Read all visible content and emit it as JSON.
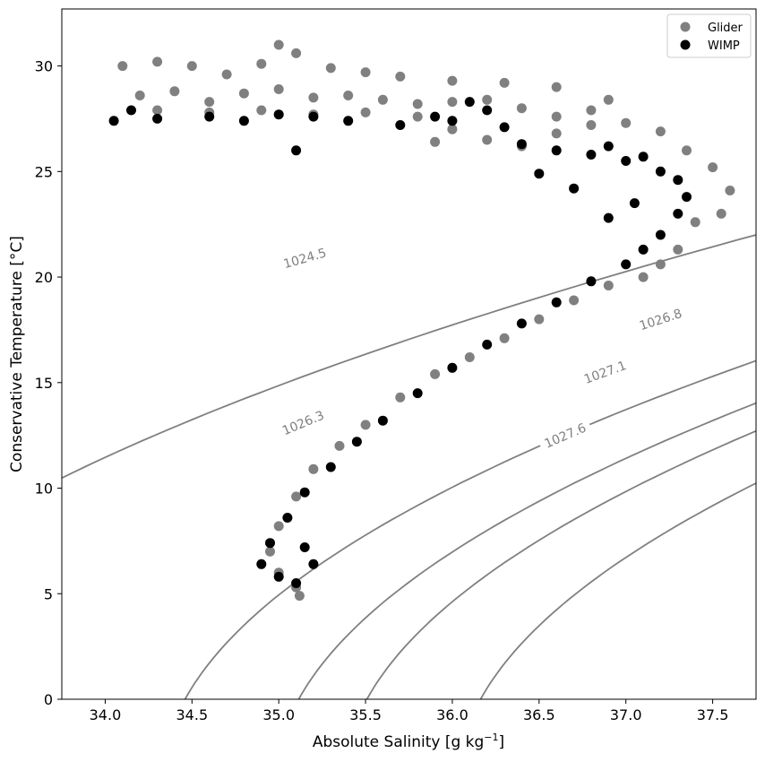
{
  "chart_data": {
    "type": "scatter",
    "xlabel": "Absolute Salinity [g kg",
    "xlabel_sup": "−1",
    "xlabel_end": "]",
    "ylabel": "Conservative Temperature [°C]",
    "xlim": [
      33.75,
      37.75
    ],
    "ylim": [
      0,
      32.7
    ],
    "x_ticks": [
      34.0,
      34.5,
      35.0,
      35.5,
      36.0,
      36.5,
      37.0,
      37.5
    ],
    "x_tick_labels": [
      "34.0",
      "34.5",
      "35.0",
      "35.5",
      "36.0",
      "36.5",
      "37.0",
      "37.5"
    ],
    "y_ticks": [
      0,
      5,
      10,
      15,
      20,
      25,
      30
    ],
    "y_tick_labels": [
      "0",
      "5",
      "10",
      "15",
      "20",
      "25",
      "30"
    ],
    "grid": false,
    "legend": {
      "position": "top-right",
      "entries": [
        "Glider",
        "WIMP"
      ]
    },
    "series": [
      {
        "name": "Glider",
        "color": "#808080",
        "points": [
          [
            34.1,
            30.0
          ],
          [
            34.3,
            30.2
          ],
          [
            34.5,
            30.0
          ],
          [
            34.7,
            29.6
          ],
          [
            34.9,
            30.1
          ],
          [
            35.0,
            31.0
          ],
          [
            35.1,
            30.6
          ],
          [
            35.3,
            29.9
          ],
          [
            35.5,
            29.7
          ],
          [
            35.7,
            29.5
          ],
          [
            36.0,
            29.3
          ],
          [
            36.3,
            29.2
          ],
          [
            36.6,
            29.0
          ],
          [
            36.9,
            28.4
          ],
          [
            34.2,
            28.6
          ],
          [
            34.4,
            28.8
          ],
          [
            34.6,
            28.3
          ],
          [
            34.8,
            28.7
          ],
          [
            35.0,
            28.9
          ],
          [
            35.2,
            28.5
          ],
          [
            35.4,
            28.6
          ],
          [
            35.6,
            28.4
          ],
          [
            35.8,
            28.2
          ],
          [
            36.0,
            28.3
          ],
          [
            36.2,
            28.4
          ],
          [
            36.4,
            28.0
          ],
          [
            36.6,
            27.6
          ],
          [
            36.8,
            27.9
          ],
          [
            34.3,
            27.9
          ],
          [
            34.6,
            27.8
          ],
          [
            34.9,
            27.9
          ],
          [
            35.2,
            27.7
          ],
          [
            35.5,
            27.8
          ],
          [
            35.8,
            27.6
          ],
          [
            36.0,
            27.0
          ],
          [
            36.2,
            26.5
          ],
          [
            36.4,
            26.2
          ],
          [
            35.9,
            26.4
          ],
          [
            36.6,
            26.8
          ],
          [
            36.8,
            27.2
          ],
          [
            37.0,
            27.3
          ],
          [
            37.2,
            26.9
          ],
          [
            37.35,
            26.0
          ],
          [
            37.5,
            25.2
          ],
          [
            37.6,
            24.1
          ],
          [
            37.55,
            23.0
          ],
          [
            37.4,
            22.6
          ],
          [
            37.3,
            21.3
          ],
          [
            37.2,
            20.6
          ],
          [
            37.1,
            20.0
          ],
          [
            36.9,
            19.6
          ],
          [
            36.7,
            18.9
          ],
          [
            36.5,
            18.0
          ],
          [
            36.3,
            17.1
          ],
          [
            36.1,
            16.2
          ],
          [
            35.9,
            15.4
          ],
          [
            35.7,
            14.3
          ],
          [
            35.5,
            13.0
          ],
          [
            35.35,
            12.0
          ],
          [
            35.2,
            10.9
          ],
          [
            35.1,
            9.6
          ],
          [
            35.0,
            8.2
          ],
          [
            34.95,
            7.0
          ],
          [
            35.0,
            6.0
          ],
          [
            35.1,
            5.3
          ],
          [
            35.12,
            4.9
          ]
        ]
      },
      {
        "name": "WIMP",
        "color": "#000000",
        "points": [
          [
            34.05,
            27.4
          ],
          [
            34.15,
            27.9
          ],
          [
            34.3,
            27.5
          ],
          [
            34.6,
            27.6
          ],
          [
            34.8,
            27.4
          ],
          [
            35.0,
            27.7
          ],
          [
            35.2,
            27.6
          ],
          [
            35.4,
            27.4
          ],
          [
            35.1,
            26.0
          ],
          [
            35.7,
            27.2
          ],
          [
            35.9,
            27.6
          ],
          [
            36.0,
            27.4
          ],
          [
            36.1,
            28.3
          ],
          [
            36.2,
            27.9
          ],
          [
            36.3,
            27.1
          ],
          [
            36.4,
            26.3
          ],
          [
            36.6,
            26.0
          ],
          [
            36.8,
            25.8
          ],
          [
            36.9,
            26.2
          ],
          [
            37.0,
            25.5
          ],
          [
            37.1,
            25.7
          ],
          [
            37.2,
            25.0
          ],
          [
            37.3,
            24.6
          ],
          [
            37.35,
            23.8
          ],
          [
            37.3,
            23.0
          ],
          [
            37.2,
            22.0
          ],
          [
            37.1,
            21.3
          ],
          [
            37.0,
            20.6
          ],
          [
            36.8,
            19.8
          ],
          [
            36.6,
            18.8
          ],
          [
            36.4,
            17.8
          ],
          [
            36.2,
            16.8
          ],
          [
            36.0,
            15.7
          ],
          [
            35.8,
            14.5
          ],
          [
            35.6,
            13.2
          ],
          [
            35.45,
            12.2
          ],
          [
            35.3,
            11.0
          ],
          [
            35.15,
            9.8
          ],
          [
            35.05,
            8.6
          ],
          [
            34.95,
            7.4
          ],
          [
            34.9,
            6.4
          ],
          [
            35.0,
            5.8
          ],
          [
            35.1,
            5.5
          ],
          [
            35.2,
            6.4
          ],
          [
            35.15,
            7.2
          ],
          [
            36.9,
            22.8
          ],
          [
            36.7,
            24.2
          ],
          [
            37.05,
            23.5
          ],
          [
            36.5,
            24.9
          ]
        ]
      }
    ],
    "contour_color": "#808080",
    "contours": [
      {
        "label": "1024.5",
        "sigma": 24.5,
        "label_at": [
          35.15,
          20.9
        ]
      },
      {
        "label": "1026.3",
        "sigma": 26.3,
        "label_at": [
          35.14,
          13.1
        ]
      },
      {
        "label": "1026.8",
        "sigma": 26.8,
        "label_at": [
          37.2,
          18.0
        ]
      },
      {
        "label": "1027.1",
        "sigma": 27.1,
        "label_at": [
          36.88,
          15.5
        ]
      },
      {
        "label": "1027.6",
        "sigma": 27.6,
        "label_at": [
          36.65,
          12.5
        ]
      }
    ]
  }
}
